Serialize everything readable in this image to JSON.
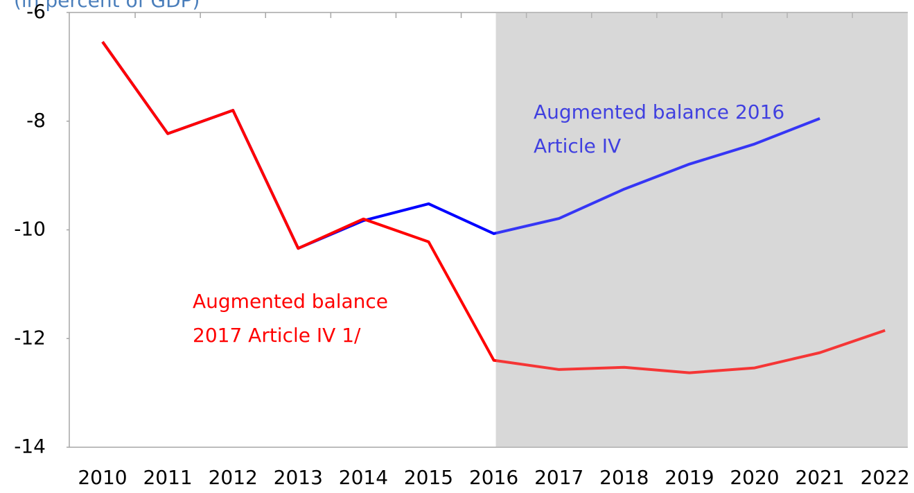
{
  "chart_data": {
    "type": "line",
    "subtitle": "(in percent of GDP)",
    "categories": [
      "2010",
      "2011",
      "2012",
      "2013",
      "2014",
      "2015",
      "2016",
      "2017",
      "2018",
      "2019",
      "2020",
      "2021",
      "2022"
    ],
    "series": [
      {
        "name": "Augmented balance 2016 Article IV",
        "color": "#0000ff",
        "values": [
          -6.54,
          -8.23,
          -7.8,
          -10.34,
          -9.83,
          -9.52,
          -10.07,
          -9.79,
          -9.25,
          -8.79,
          -8.42,
          -7.95,
          null
        ]
      },
      {
        "name": "Augmented balance 2017 Article IV 1/",
        "color": "#ff0000",
        "values": [
          -6.54,
          -8.23,
          -7.8,
          -10.34,
          -9.8,
          -10.22,
          -12.4,
          -12.57,
          -12.53,
          -12.63,
          -12.54,
          -12.26,
          -11.85
        ]
      }
    ],
    "annotations": [
      {
        "lines": [
          "Augmented balance 2016",
          "Article IV"
        ],
        "color": "#4040e0"
      },
      {
        "lines": [
          "Augmented balance",
          "2017 Article IV 1/"
        ],
        "color": "#ff0000"
      }
    ],
    "shaded_from": "2016",
    "ylim": [
      -14,
      -6
    ],
    "yticks": [
      -14,
      -12,
      -10,
      -8,
      -6
    ]
  }
}
